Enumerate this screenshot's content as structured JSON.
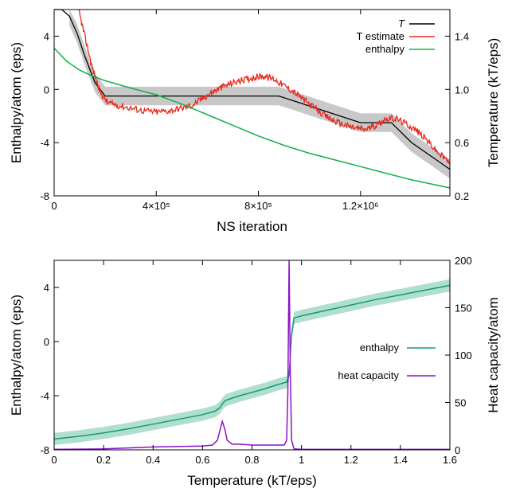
{
  "colors": {
    "T": "#000000",
    "T_estimate": "#e8281c",
    "T_band": "#c8c8c8",
    "enthalpy_top": "#10b04a",
    "enthalpy_bottom": "#11997c",
    "enthalpy_band": "#a7dccb",
    "heat_capacity": "#8b12c7"
  },
  "chart_data": [
    {
      "type": "line",
      "xlabel": "NS iteration",
      "ylabel": "Enthalpy/atom (eps)",
      "y2label": "Temperature (kT/eps)",
      "xlim": [
        0,
        1550000
      ],
      "ylim": [
        -8,
        6
      ],
      "y2lim": [
        0.2,
        1.6
      ],
      "xticks": [
        {
          "value": 0,
          "label": "0"
        },
        {
          "value": 400000,
          "label": "4×10⁵"
        },
        {
          "value": 800000,
          "label": "8×10⁵"
        },
        {
          "value": 1200000,
          "label": "1.2×10⁶"
        }
      ],
      "yticks": [
        {
          "value": -8,
          "label": "-8"
        },
        {
          "value": -4,
          "label": "-4"
        },
        {
          "value": 0,
          "label": "0"
        },
        {
          "value": 4,
          "label": "4"
        }
      ],
      "y2ticks": [
        {
          "value": 0.2,
          "label": "0.2"
        },
        {
          "value": 0.6,
          "label": "0.6"
        },
        {
          "value": 1.0,
          "label": "1.0"
        },
        {
          "value": 1.4,
          "label": "1.4"
        }
      ],
      "legend": {
        "position": "top-right",
        "entries": [
          "T",
          "T estimate",
          "enthalpy"
        ]
      },
      "series": [
        {
          "name": "T",
          "axis": "y2",
          "color": "#000000",
          "x": [
            0,
            30000,
            60000,
            90000,
            120000,
            160000,
            200000,
            480000,
            481000,
            880000,
            1200000,
            1201000,
            1320000,
            1321000,
            1400000,
            1550000
          ],
          "y": [
            1.8,
            1.7,
            1.55,
            1.42,
            1.25,
            1.05,
            0.95,
            0.95,
            0.95,
            0.95,
            0.75,
            0.75,
            0.75,
            0.75,
            0.6,
            0.4
          ]
        },
        {
          "name": "T estimate",
          "axis": "y2",
          "color": "#e8281c",
          "x": [
            95000,
            120000,
            150000,
            180000,
            210000,
            250000,
            300000,
            350000,
            400000,
            450000,
            500000,
            540000,
            580000,
            620000,
            660000,
            700000,
            740000,
            780000,
            820000,
            860000,
            900000,
            940000,
            980000,
            1020000,
            1060000,
            1100000,
            1140000,
            1180000,
            1220000,
            1260000,
            1300000,
            1340000,
            1380000,
            1420000,
            1460000,
            1500000,
            1550000
          ],
          "y": [
            1.6,
            1.4,
            1.16,
            0.98,
            0.9,
            0.88,
            0.86,
            0.84,
            0.83,
            0.84,
            0.86,
            0.88,
            0.93,
            0.98,
            1.02,
            1.05,
            1.07,
            1.09,
            1.1,
            1.08,
            1.03,
            0.98,
            0.92,
            0.86,
            0.8,
            0.76,
            0.73,
            0.71,
            0.7,
            0.73,
            0.78,
            0.78,
            0.74,
            0.69,
            0.62,
            0.53,
            0.45
          ]
        },
        {
          "name": "enthalpy",
          "axis": "y",
          "color": "#10b04a",
          "x": [
            0,
            50000,
            100000,
            150000,
            200000,
            300000,
            400000,
            500000,
            600000,
            700000,
            800000,
            900000,
            1000000,
            1100000,
            1200000,
            1300000,
            1400000,
            1500000,
            1550000
          ],
          "y": [
            3.1,
            2.1,
            1.45,
            1.0,
            0.65,
            0.1,
            -0.4,
            -1.1,
            -1.9,
            -2.7,
            -3.5,
            -4.2,
            -4.8,
            -5.3,
            -5.8,
            -6.3,
            -6.8,
            -7.2,
            -7.4
          ]
        }
      ]
    },
    {
      "type": "line",
      "xlabel": "Temperature (kT/eps)",
      "ylabel": "Enthalpy/atom (eps)",
      "y2label": "Heat capacity/atom",
      "xlim": [
        0,
        1.6
      ],
      "ylim": [
        -8,
        6
      ],
      "y2lim": [
        0,
        200
      ],
      "xticks": [
        {
          "value": 0,
          "label": "0"
        },
        {
          "value": 0.2,
          "label": "0.2"
        },
        {
          "value": 0.4,
          "label": "0.4"
        },
        {
          "value": 0.6,
          "label": "0.6"
        },
        {
          "value": 0.8,
          "label": "0.8"
        },
        {
          "value": 1.0,
          "label": "1"
        },
        {
          "value": 1.2,
          "label": "1.2"
        },
        {
          "value": 1.4,
          "label": "1.4"
        },
        {
          "value": 1.6,
          "label": "1.6"
        }
      ],
      "yticks": [
        {
          "value": -8,
          "label": "-8"
        },
        {
          "value": -4,
          "label": "-4"
        },
        {
          "value": 0,
          "label": "0"
        },
        {
          "value": 4,
          "label": "4"
        }
      ],
      "y2ticks": [
        {
          "value": 0,
          "label": "0"
        },
        {
          "value": 50,
          "label": "50"
        },
        {
          "value": 100,
          "label": "100"
        },
        {
          "value": 150,
          "label": "150"
        },
        {
          "value": 200,
          "label": "200"
        }
      ],
      "legend": {
        "position": "right",
        "entries": [
          "enthalpy",
          "heat capacity"
        ]
      },
      "series": [
        {
          "name": "enthalpy",
          "axis": "y",
          "color": "#11997c",
          "x": [
            0,
            0.1,
            0.2,
            0.3,
            0.4,
            0.5,
            0.6,
            0.65,
            0.67,
            0.68,
            0.69,
            0.7,
            0.75,
            0.8,
            0.85,
            0.9,
            0.94,
            0.95,
            0.96,
            0.97,
            1.0,
            1.1,
            1.2,
            1.3,
            1.4,
            1.5,
            1.6
          ],
          "y": [
            -7.2,
            -7.0,
            -6.75,
            -6.45,
            -6.1,
            -5.75,
            -5.4,
            -5.15,
            -4.9,
            -4.6,
            -4.4,
            -4.3,
            -4.0,
            -3.75,
            -3.5,
            -3.2,
            -3.0,
            -2.5,
            0.5,
            1.75,
            1.9,
            2.3,
            2.7,
            3.1,
            3.45,
            3.8,
            4.15
          ]
        },
        {
          "name": "heat capacity",
          "axis": "y2",
          "color": "#8b12c7",
          "x": [
            0,
            0.2,
            0.3,
            0.4,
            0.5,
            0.6,
            0.64,
            0.66,
            0.67,
            0.68,
            0.69,
            0.7,
            0.72,
            0.75,
            0.8,
            0.9,
            0.93,
            0.94,
            0.945,
            0.95,
            0.955,
            0.96,
            0.97,
            1.0,
            1.2,
            1.4,
            1.6
          ],
          "y": [
            0.5,
            1,
            2,
            3,
            3.5,
            4,
            5,
            10,
            20,
            30,
            22,
            10,
            6,
            6,
            5,
            5,
            5,
            10,
            60,
            200,
            80,
            10,
            1,
            0.5,
            0.5,
            0.5,
            0.5
          ]
        }
      ],
      "bands": [
        {
          "series": "enthalpy",
          "note": "uncertainty band"
        }
      ]
    }
  ]
}
